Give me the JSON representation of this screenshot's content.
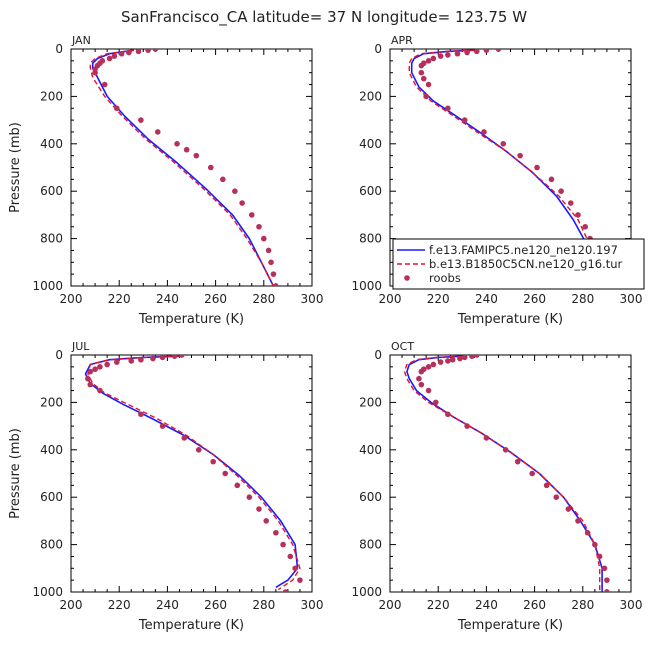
{
  "figure_title": "SanFrancisco_CA  latitude= 37 N longitude= 123.75 W",
  "legend": {
    "entries": [
      {
        "label": "f.e13.FAMIPC5.ne120_ne120.197",
        "color": "#1a1aff",
        "style": "solid"
      },
      {
        "label": "b.e13.B1850C5CN.ne120_g16.tur",
        "color": "#e8112d",
        "style": "dashed"
      },
      {
        "label": "roobs",
        "color": "#b5305a",
        "style": "dot"
      }
    ]
  },
  "chart_data": [
    {
      "type": "line",
      "panel_label": "JAN",
      "xlabel": "Temperature (K)",
      "ylabel": "Pressure (mb)",
      "xlim": [
        200,
        300
      ],
      "ylim": [
        1000,
        0
      ],
      "xticks": [
        "200",
        "220",
        "240",
        "260",
        "280",
        "300"
      ],
      "yticks": [
        "0",
        "200",
        "400",
        "600",
        "800",
        "1000"
      ],
      "legend_visible": false,
      "series": [
        {
          "name": "f.e13.FAMIPC5.ne120_ne120.197",
          "x": [
            226,
            216,
            211,
            209,
            209,
            211,
            215,
            222,
            232,
            244,
            256,
            267,
            274,
            279,
            284
          ],
          "y": [
            5,
            20,
            40,
            60,
            80,
            120,
            200,
            280,
            380,
            480,
            590,
            700,
            800,
            900,
            1000
          ]
        },
        {
          "name": "b.e13.B1850C5CN.ne120_g16.tur",
          "x": [
            226,
            215,
            210,
            208,
            208,
            209,
            214,
            221,
            231,
            243,
            255,
            266,
            273,
            279,
            284
          ],
          "y": [
            5,
            20,
            40,
            60,
            80,
            120,
            200,
            280,
            380,
            480,
            590,
            700,
            800,
            900,
            1000
          ]
        },
        {
          "name": "roobs",
          "x": [
            235,
            232,
            228,
            224,
            221,
            218,
            216,
            213,
            212,
            211,
            210,
            210,
            214,
            219,
            229,
            236,
            244,
            248,
            252,
            258,
            263,
            268,
            271,
            275,
            278,
            280,
            282,
            283,
            284,
            285
          ],
          "y": [
            0,
            5,
            10,
            15,
            20,
            30,
            40,
            50,
            60,
            70,
            85,
            100,
            150,
            250,
            300,
            350,
            400,
            425,
            450,
            500,
            550,
            600,
            650,
            700,
            750,
            800,
            850,
            900,
            950,
            1000
          ]
        }
      ]
    },
    {
      "type": "line",
      "panel_label": "APR",
      "xlabel": "Temperature (K)",
      "ylabel": "",
      "xlim": [
        200,
        300
      ],
      "ylim": [
        1000,
        0
      ],
      "xticks": [
        "200",
        "220",
        "240",
        "260",
        "280",
        "300"
      ],
      "yticks": [
        "0",
        "200",
        "400",
        "600",
        "800",
        "1000"
      ],
      "legend_visible": true,
      "series": [
        {
          "name": "f.e13.FAMIPC5.ne120_ne120.197",
          "x": [
            235,
            224,
            214,
            210,
            209,
            209,
            212,
            218,
            227,
            237,
            248,
            259,
            269,
            276,
            283,
            285
          ],
          "y": [
            5,
            10,
            20,
            40,
            60,
            100,
            160,
            220,
            280,
            350,
            430,
            520,
            620,
            720,
            850,
            1000
          ]
        },
        {
          "name": "b.e13.B1850C5CN.ne120_g16.tur",
          "x": [
            235,
            223,
            213,
            209,
            208,
            208,
            211,
            217,
            226,
            236,
            248,
            259,
            270,
            278,
            284,
            286
          ],
          "y": [
            5,
            10,
            20,
            40,
            60,
            100,
            160,
            220,
            280,
            350,
            430,
            520,
            620,
            720,
            850,
            1000
          ]
        },
        {
          "name": "roobs",
          "x": [
            245,
            240,
            236,
            232,
            228,
            224,
            221,
            218,
            216,
            214,
            213,
            213,
            214,
            216,
            215,
            224,
            231,
            239,
            247,
            254,
            261,
            267,
            271,
            275,
            278,
            281,
            283,
            284,
            285
          ],
          "y": [
            0,
            5,
            10,
            15,
            20,
            25,
            30,
            40,
            50,
            60,
            70,
            100,
            125,
            150,
            200,
            250,
            300,
            350,
            400,
            450,
            500,
            550,
            600,
            650,
            700,
            750,
            800,
            900,
            950
          ]
        }
      ]
    },
    {
      "type": "line",
      "panel_label": "JUL",
      "xlabel": "Temperature (K)",
      "ylabel": "Pressure (mb)",
      "xlim": [
        200,
        300
      ],
      "ylim": [
        1000,
        0
      ],
      "xticks": [
        "200",
        "220",
        "240",
        "260",
        "280",
        "300"
      ],
      "yticks": [
        "0",
        "200",
        "400",
        "600",
        "800",
        "1000"
      ],
      "legend_visible": false,
      "series": [
        {
          "name": "f.e13.FAMIPC5.ne120_ne120.197",
          "x": [
            245,
            230,
            216,
            208,
            206,
            208,
            213,
            222,
            234,
            247,
            259,
            270,
            279,
            287,
            293,
            294,
            290,
            285
          ],
          "y": [
            5,
            10,
            20,
            40,
            80,
            120,
            160,
            210,
            270,
            340,
            420,
            510,
            600,
            700,
            800,
            900,
            950,
            980
          ]
        },
        {
          "name": "b.e13.B1850C5CN.ne120_g16.tur",
          "x": [
            245,
            230,
            216,
            208,
            207,
            209,
            214,
            224,
            236,
            248,
            259,
            269,
            278,
            286,
            292,
            295,
            292,
            286
          ],
          "y": [
            5,
            10,
            20,
            40,
            80,
            120,
            160,
            210,
            270,
            340,
            420,
            510,
            600,
            700,
            800,
            900,
            950,
            990
          ]
        },
        {
          "name": "roobs",
          "x": [
            246,
            243,
            238,
            234,
            229,
            225,
            219,
            215,
            212,
            210,
            208,
            207,
            208,
            212,
            229,
            238,
            247,
            253,
            259,
            264,
            269,
            274,
            278,
            281,
            285,
            288,
            291,
            293,
            295,
            289
          ],
          "y": [
            0,
            5,
            10,
            15,
            20,
            25,
            30,
            40,
            50,
            60,
            70,
            100,
            125,
            150,
            250,
            300,
            350,
            400,
            450,
            500,
            550,
            600,
            650,
            700,
            750,
            800,
            850,
            900,
            950,
            1000
          ]
        }
      ]
    },
    {
      "type": "line",
      "panel_label": "OCT",
      "xlabel": "Temperature (K)",
      "ylabel": "",
      "xlim": [
        200,
        300
      ],
      "ylim": [
        1000,
        0
      ],
      "xticks": [
        "200",
        "220",
        "240",
        "260",
        "280",
        "300"
      ],
      "yticks": [
        "0",
        "200",
        "400",
        "600",
        "800",
        "1000"
      ],
      "legend_visible": false,
      "series": [
        {
          "name": "f.e13.FAMIPC5.ne120_ne120.197",
          "x": [
            230,
            220,
            212,
            208,
            207,
            208,
            211,
            217,
            226,
            238,
            250,
            262,
            272,
            279,
            285,
            288,
            288
          ],
          "y": [
            5,
            10,
            20,
            40,
            70,
            100,
            150,
            200,
            260,
            330,
            410,
            500,
            600,
            700,
            800,
            900,
            1000
          ]
        },
        {
          "name": "b.e13.B1850C5CN.ne120_g16.tur",
          "x": [
            230,
            219,
            211,
            207,
            206,
            207,
            210,
            216,
            226,
            238,
            250,
            262,
            272,
            280,
            285,
            287,
            287
          ],
          "y": [
            5,
            10,
            20,
            40,
            70,
            100,
            150,
            200,
            260,
            330,
            410,
            500,
            600,
            700,
            800,
            900,
            1000
          ]
        },
        {
          "name": "roobs",
          "x": [
            236,
            234,
            231,
            229,
            226,
            224,
            221,
            218,
            216,
            214,
            213,
            212,
            213,
            216,
            219,
            224,
            232,
            240,
            248,
            253,
            259,
            265,
            269,
            274,
            278,
            282,
            285,
            287,
            289,
            290,
            290
          ],
          "y": [
            0,
            5,
            10,
            15,
            20,
            25,
            30,
            40,
            50,
            60,
            70,
            100,
            125,
            150,
            200,
            250,
            300,
            350,
            400,
            450,
            500,
            550,
            600,
            650,
            700,
            750,
            800,
            850,
            900,
            950,
            1000
          ]
        }
      ]
    }
  ]
}
